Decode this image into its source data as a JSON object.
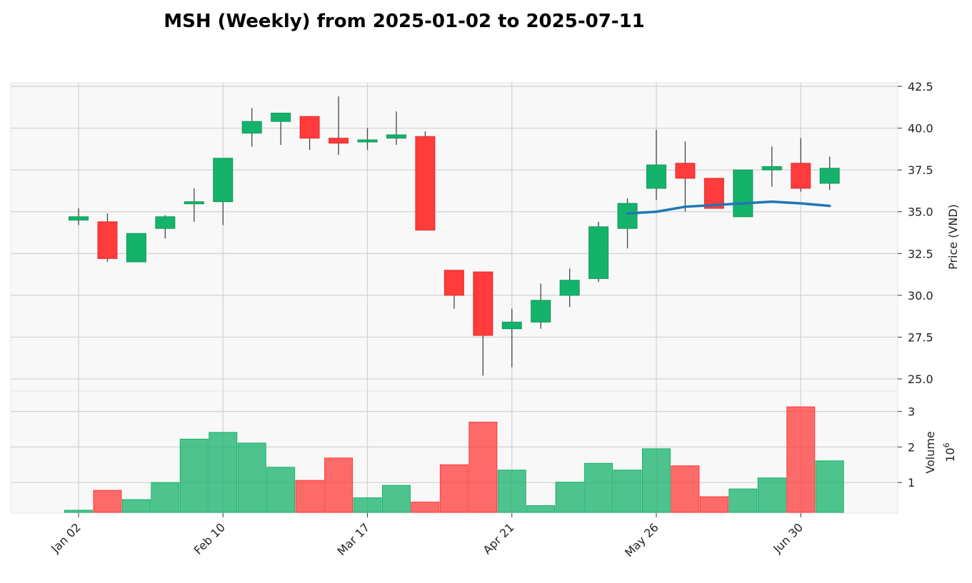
{
  "chart_data": {
    "type": "candlestick",
    "title": "MSH (Weekly) from 2025-01-02 to 2025-07-11",
    "ylabel": "Price (VND)",
    "volume_label": "Volume",
    "volume_exponent_base": "10",
    "volume_exponent_power": "6",
    "ylim": [
      24.5,
      42.5
    ],
    "volume_ylim": [
      0,
      3.2
    ],
    "y_ticks": [
      "25.0",
      "27.5",
      "30.0",
      "32.5",
      "35.0",
      "37.5",
      "40.0",
      "42.5"
    ],
    "volume_ticks": [
      "1",
      "2",
      "3"
    ],
    "x_ticks": [
      {
        "index": 0,
        "label": "Jan 02"
      },
      {
        "index": 5,
        "label": "Feb 10"
      },
      {
        "index": 10,
        "label": "Mar 17"
      },
      {
        "index": 15,
        "label": "Apr 21"
      },
      {
        "index": 20,
        "label": "May 26"
      },
      {
        "index": 25,
        "label": "Jun 30"
      }
    ],
    "grid": true,
    "colors": {
      "up": "#15b26b",
      "down": "#ff3b3b",
      "ma": "#1f77b4",
      "background": "#f8f8f8",
      "grid": "#d0d0d0"
    },
    "candles": [
      {
        "open": 34.5,
        "high": 35.2,
        "low": 34.2,
        "close": 34.7,
        "volume": 0.22
      },
      {
        "open": 34.4,
        "high": 34.9,
        "low": 32.0,
        "close": 32.2,
        "volume": 0.78
      },
      {
        "open": 32.0,
        "high": 33.7,
        "low": 32.0,
        "close": 33.7,
        "volume": 0.52
      },
      {
        "open": 34.0,
        "high": 34.8,
        "low": 33.4,
        "close": 34.7,
        "volume": 1.0
      },
      {
        "open": 35.5,
        "high": 36.4,
        "low": 34.4,
        "close": 35.6,
        "volume": 2.22
      },
      {
        "open": 35.6,
        "high": 38.2,
        "low": 34.2,
        "close": 38.2,
        "volume": 2.41
      },
      {
        "open": 39.7,
        "high": 41.2,
        "low": 38.9,
        "close": 40.4,
        "volume": 2.11
      },
      {
        "open": 40.4,
        "high": 40.9,
        "low": 39.0,
        "close": 40.9,
        "volume": 1.43
      },
      {
        "open": 40.7,
        "high": 40.7,
        "low": 38.7,
        "close": 39.4,
        "volume": 1.06
      },
      {
        "open": 39.4,
        "high": 41.9,
        "low": 38.4,
        "close": 39.1,
        "volume": 1.69
      },
      {
        "open": 39.2,
        "high": 40.0,
        "low": 38.7,
        "close": 39.3,
        "volume": 0.57
      },
      {
        "open": 39.4,
        "high": 41.0,
        "low": 39.0,
        "close": 39.6,
        "volume": 0.92
      },
      {
        "open": 39.5,
        "high": 39.8,
        "low": 33.9,
        "close": 33.9,
        "volume": 0.45
      },
      {
        "open": 31.5,
        "high": 31.5,
        "low": 29.2,
        "close": 30.0,
        "volume": 1.5
      },
      {
        "open": 31.4,
        "high": 31.4,
        "low": 25.2,
        "close": 27.6,
        "volume": 2.7
      },
      {
        "open": 28.0,
        "high": 29.2,
        "low": 25.7,
        "close": 28.4,
        "volume": 1.35
      },
      {
        "open": 28.4,
        "high": 30.7,
        "low": 28.0,
        "close": 29.7,
        "volume": 0.35
      },
      {
        "open": 30.0,
        "high": 31.6,
        "low": 29.3,
        "close": 30.9,
        "volume": 1.01
      },
      {
        "open": 31.0,
        "high": 34.4,
        "low": 30.8,
        "close": 34.1,
        "volume": 1.54
      },
      {
        "open": 34.0,
        "high": 35.8,
        "low": 32.8,
        "close": 35.5,
        "volume": 1.35
      },
      {
        "open": 36.4,
        "high": 39.9,
        "low": 35.7,
        "close": 37.8,
        "volume": 1.95
      },
      {
        "open": 37.9,
        "high": 39.2,
        "low": 35.0,
        "close": 37.0,
        "volume": 1.47
      },
      {
        "open": 37.0,
        "high": 37.0,
        "low": 35.2,
        "close": 35.2,
        "volume": 0.6
      },
      {
        "open": 34.7,
        "high": 37.5,
        "low": 34.7,
        "close": 37.5,
        "volume": 0.82
      },
      {
        "open": 37.5,
        "high": 38.9,
        "low": 36.5,
        "close": 37.7,
        "volume": 1.13
      },
      {
        "open": 37.9,
        "high": 39.4,
        "low": 36.2,
        "close": 36.4,
        "volume": 3.13
      },
      {
        "open": 36.7,
        "high": 38.3,
        "low": 36.3,
        "close": 37.6,
        "volume": 1.61
      }
    ],
    "moving_average": [
      {
        "index": 19,
        "value": 34.9
      },
      {
        "index": 20,
        "value": 35.0
      },
      {
        "index": 21,
        "value": 35.3
      },
      {
        "index": 22,
        "value": 35.4
      },
      {
        "index": 23,
        "value": 35.5
      },
      {
        "index": 24,
        "value": 35.6
      },
      {
        "index": 25,
        "value": 35.5
      },
      {
        "index": 26,
        "value": 35.35
      }
    ]
  }
}
